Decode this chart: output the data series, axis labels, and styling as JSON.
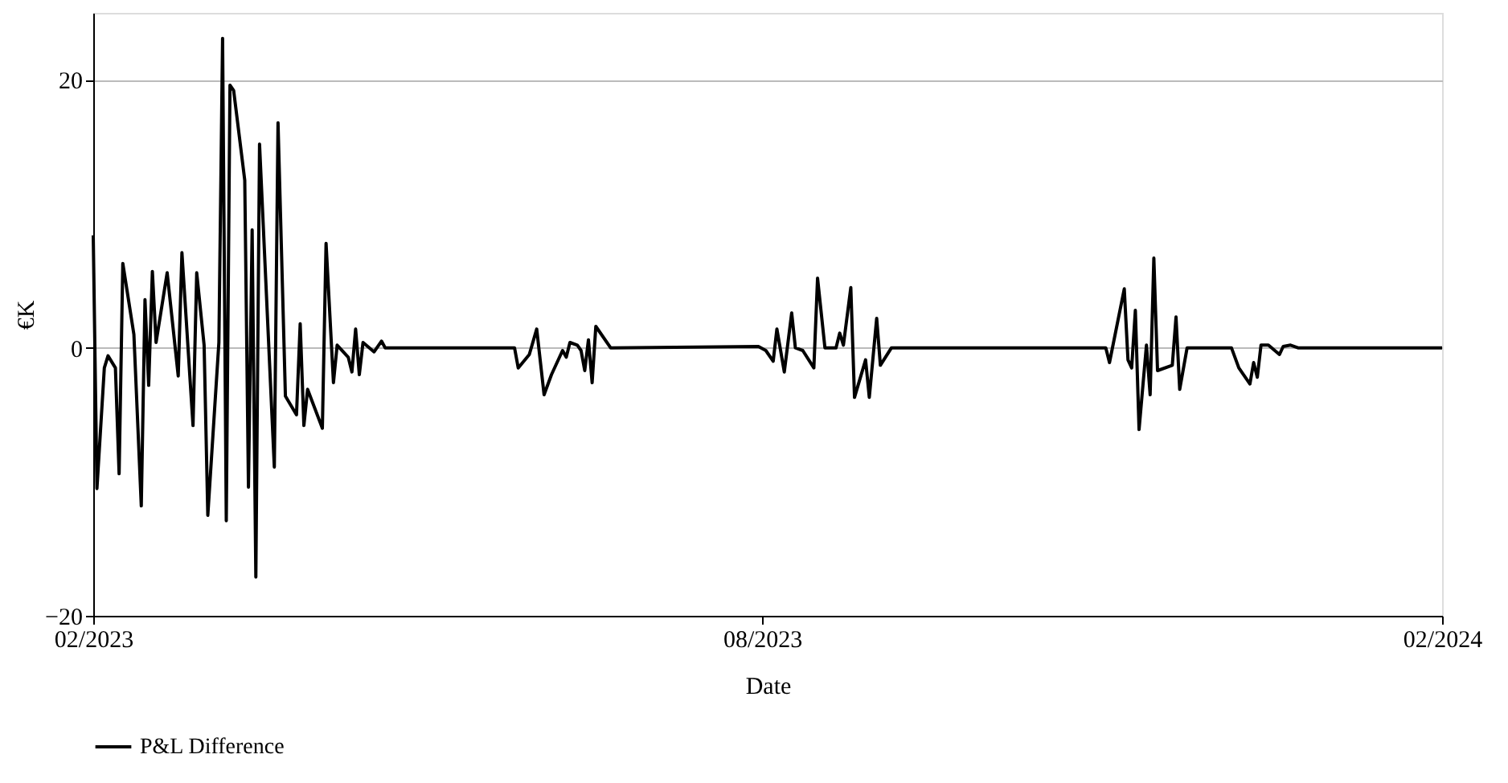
{
  "chart_data": {
    "type": "line",
    "xlabel": "Date",
    "ylabel": "€K",
    "x": [
      "2023-02-01",
      "2023-02-02",
      "2023-02-04",
      "2023-02-05",
      "2023-02-07",
      "2023-02-08",
      "2023-02-09",
      "2023-02-12",
      "2023-02-14",
      "2023-02-15",
      "2023-02-16",
      "2023-02-17",
      "2023-02-18",
      "2023-02-21",
      "2023-02-24",
      "2023-02-25",
      "2023-02-28",
      "2023-03-01",
      "2023-03-03",
      "2023-03-04",
      "2023-03-07",
      "2023-03-08",
      "2023-03-09",
      "2023-03-10",
      "2023-03-11",
      "2023-03-14",
      "2023-03-15",
      "2023-03-16",
      "2023-03-17",
      "2023-03-18",
      "2023-03-22",
      "2023-03-23",
      "2023-03-25",
      "2023-03-28",
      "2023-03-29",
      "2023-03-30",
      "2023-03-31",
      "2023-04-04",
      "2023-04-05",
      "2023-04-07",
      "2023-04-08",
      "2023-04-11",
      "2023-04-12",
      "2023-04-13",
      "2023-04-14",
      "2023-04-15",
      "2023-04-18",
      "2023-04-20",
      "2023-04-21",
      "2023-05-26",
      "2023-05-27",
      "2023-05-30",
      "2023-06-01",
      "2023-06-03",
      "2023-06-05",
      "2023-06-08",
      "2023-06-09",
      "2023-06-10",
      "2023-06-12",
      "2023-06-13",
      "2023-06-14",
      "2023-06-15",
      "2023-06-16",
      "2023-06-17",
      "2023-06-21",
      "2023-07-31",
      "2023-08-02",
      "2023-08-04",
      "2023-08-05",
      "2023-08-07",
      "2023-08-09",
      "2023-08-10",
      "2023-08-12",
      "2023-08-15",
      "2023-08-16",
      "2023-08-18",
      "2023-08-21",
      "2023-08-22",
      "2023-08-23",
      "2023-08-25",
      "2023-08-26",
      "2023-08-29",
      "2023-08-30",
      "2023-09-01",
      "2023-09-02",
      "2023-09-05",
      "2023-11-02",
      "2023-11-03",
      "2023-11-07",
      "2023-11-08",
      "2023-11-09",
      "2023-11-10",
      "2023-11-11",
      "2023-11-13",
      "2023-11-14",
      "2023-11-15",
      "2023-11-16",
      "2023-11-20",
      "2023-11-21",
      "2023-11-22",
      "2023-11-24",
      "2023-12-06",
      "2023-12-08",
      "2023-12-11",
      "2023-12-12",
      "2023-12-13",
      "2023-12-14",
      "2023-12-16",
      "2023-12-19",
      "2023-12-20",
      "2023-12-22",
      "2023-12-24",
      "2024-02-01"
    ],
    "series": [
      {
        "name": "P&L Difference",
        "color": "#000000",
        "values": [
          8.4,
          -10.5,
          -1.5,
          -0.6,
          -1.5,
          -9.4,
          6.3,
          1.0,
          -11.8,
          3.6,
          -2.8,
          5.7,
          0.4,
          5.6,
          -2.1,
          7.1,
          -5.8,
          5.6,
          0.2,
          -12.5,
          0.4,
          23.1,
          -12.9,
          19.6,
          19.2,
          12.5,
          -10.4,
          8.8,
          -17.1,
          15.2,
          -8.9,
          16.8,
          -3.6,
          -5.0,
          1.8,
          -5.8,
          -3.1,
          -6.0,
          7.8,
          -2.6,
          0.2,
          -0.7,
          -1.8,
          1.4,
          -2.0,
          0.4,
          -0.3,
          0.5,
          0,
          0,
          -1.5,
          -0.5,
          1.4,
          -3.5,
          -2.0,
          -0.2,
          -0.7,
          0.4,
          0.2,
          -0.2,
          -1.7,
          0.6,
          -2.6,
          1.6,
          0,
          0.1,
          -0.2,
          -1.0,
          1.4,
          -1.8,
          2.6,
          0,
          -0.2,
          -1.5,
          5.2,
          0,
          0,
          1.1,
          0.2,
          4.5,
          -3.7,
          -0.9,
          -3.7,
          2.2,
          -1.3,
          0,
          0,
          -1.1,
          4.4,
          -0.9,
          -1.5,
          2.8,
          -6.1,
          0.2,
          -3.5,
          6.7,
          -1.7,
          -1.3,
          2.3,
          -3.1,
          0,
          0,
          -1.5,
          -2.7,
          -1.1,
          -2.2,
          0.2,
          0.2,
          -0.5,
          0.1,
          0.2,
          0,
          0
        ]
      }
    ],
    "xlim": [
      "2023-02-01",
      "2024-02-01"
    ],
    "xticks": [
      {
        "value": "2023-02-01",
        "label": "02/2023"
      },
      {
        "value": "2023-08-01",
        "label": "08/2023"
      },
      {
        "value": "2024-02-01",
        "label": "02/2024"
      }
    ],
    "ylim": [
      -20,
      25
    ],
    "yticks": [
      {
        "value": -20,
        "label": "−20"
      },
      0,
      20
    ],
    "grid": "y",
    "legend": "bottom",
    "line_style": "solid"
  }
}
